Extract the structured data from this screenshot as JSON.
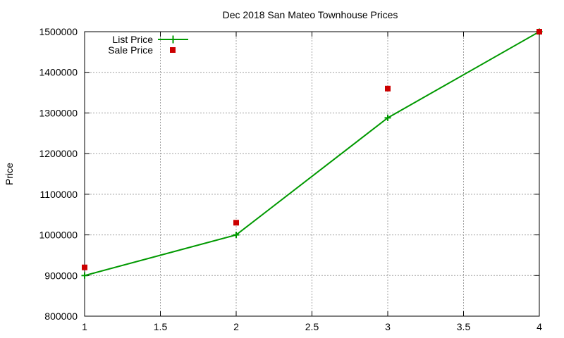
{
  "chart_data": {
    "type": "line",
    "title": "Dec 2018 San Mateo Townhouse Prices",
    "xlabel": "",
    "ylabel": "Price",
    "xlim": [
      1,
      4
    ],
    "ylim": [
      800000,
      1500000
    ],
    "x_ticks": [
      "1",
      "1.5",
      "2",
      "2.5",
      "3",
      "3.5",
      "4"
    ],
    "y_ticks": [
      "800000",
      "900000",
      "1000000",
      "1100000",
      "1200000",
      "1300000",
      "1400000",
      "1500000"
    ],
    "grid": true,
    "legend_position": "top-left",
    "series": [
      {
        "name": "List Price",
        "style": "line-with-plus-markers",
        "color": "#009900",
        "x": [
          1,
          2,
          3,
          4
        ],
        "y": [
          900000,
          1000000,
          1288000,
          1500000
        ]
      },
      {
        "name": "Sale Price",
        "style": "square-markers",
        "color": "#cc0000",
        "x": [
          1,
          2,
          3,
          4
        ],
        "y": [
          920000,
          1030000,
          1360000,
          1500000
        ]
      }
    ]
  }
}
